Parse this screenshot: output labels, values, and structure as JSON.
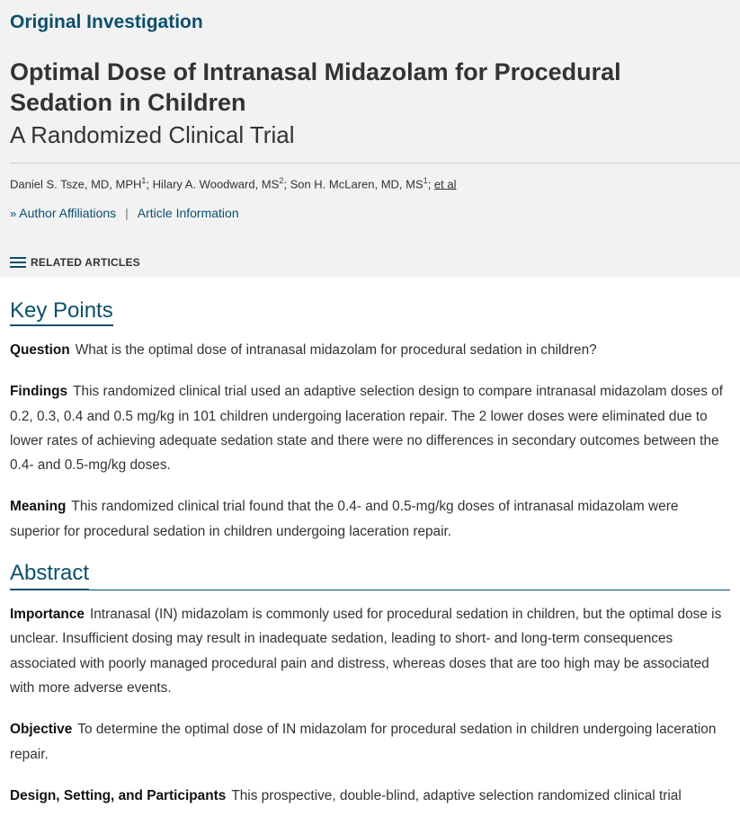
{
  "header": {
    "article_type": "Original Investigation",
    "title": "Optimal Dose of Intranasal Midazolam for Procedural Sedation in Children",
    "subtitle": "A Randomized Clinical Trial",
    "authors": [
      {
        "name": "Daniel S. Tsze, MD, MPH",
        "aff": "1",
        "sep": "; "
      },
      {
        "name": "Hilary A. Woodward, MS",
        "aff": "2",
        "sep": "; "
      },
      {
        "name": "Son H. McLaren, MD, MS",
        "aff": "1",
        "sep": "; "
      }
    ],
    "et_al": "et al",
    "author_affiliations": "Author Affiliations",
    "divider": "|",
    "article_information": "Article Information",
    "related_articles": "RELATED ARTICLES"
  },
  "key_points": {
    "heading": "Key Points",
    "question_label": "Question",
    "question_text": "What is the optimal dose of intranasal midazolam for procedural sedation in children?",
    "findings_label": "Findings",
    "findings_text": "This randomized clinical trial used an adaptive selection design to compare intranasal midazolam doses of 0.2, 0.3, 0.4 and 0.5 mg/kg in 101 children undergoing laceration repair. The 2 lower doses were eliminated due to lower rates of achieving adequate sedation state and there were no differences in secondary outcomes between the 0.4- and 0.5-mg/kg doses.",
    "meaning_label": "Meaning",
    "meaning_text": "This randomized clinical trial found that the 0.4- and 0.5-mg/kg doses of intranasal midazolam were superior for procedural sedation in children undergoing laceration repair."
  },
  "abstract": {
    "heading": "Abstract",
    "importance_label": "Importance",
    "importance_text": "Intranasal (IN) midazolam is commonly used for procedural sedation in children, but the optimal dose is unclear. Insufficient dosing may result in inadequate sedation, leading to short- and long-term consequences associated with poorly managed procedural pain and distress, whereas doses that are too high may be associated with more adverse events.",
    "objective_label": "Objective",
    "objective_text": "To determine the optimal dose of IN midazolam for procedural sedation in children undergoing laceration repair.",
    "design_label": "Design, Setting, and Participants",
    "design_text": "This prospective, double-blind, adaptive selection randomized clinical trial"
  }
}
